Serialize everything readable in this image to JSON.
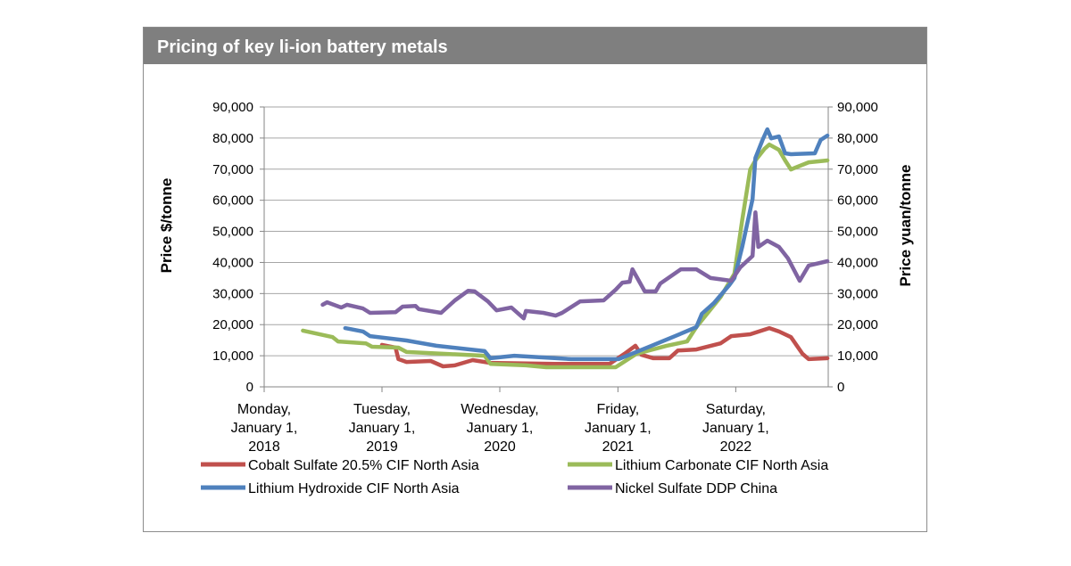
{
  "header": {
    "title": "Pricing of key li-ion battery metals"
  },
  "chart_data": {
    "type": "line",
    "title": "Pricing of key li-ion battery metals",
    "ylabel": "Price $/tonne",
    "ylabel_right": "Price yuan/tonne",
    "ylim": [
      0,
      90000
    ],
    "yticks": [
      "0",
      "10,000",
      "20,000",
      "30,000",
      "40,000",
      "50,000",
      "60,000",
      "70,000",
      "80,000",
      "90,000"
    ],
    "xlim": [
      "2018-01-01",
      "2022-10-20"
    ],
    "xticks": [
      {
        "date": "2018-01-01",
        "label": [
          "Monday,",
          "January 1,",
          "2018"
        ]
      },
      {
        "date": "2019-01-01",
        "label": [
          "Tuesday,",
          "January 1,",
          "2019"
        ]
      },
      {
        "date": "2020-01-01",
        "label": [
          "Wednesday,",
          "January 1,",
          "2020"
        ]
      },
      {
        "date": "2021-01-01",
        "label": [
          "Friday,",
          "January 1,",
          "2021"
        ]
      },
      {
        "date": "2022-01-01",
        "label": [
          "Saturday,",
          "January 1,",
          "2022"
        ]
      }
    ],
    "grid": "horizontal",
    "legend": "bottom",
    "series": [
      {
        "name": "Cobalt Sulfate 20.5% CIF North Asia",
        "color": "#c0504d",
        "points": [
          [
            "2019-01-01",
            13500
          ],
          [
            "2019-02-12",
            12600
          ],
          [
            "2019-02-21",
            8900
          ],
          [
            "2019-03-18",
            8000
          ],
          [
            "2019-06-01",
            8300
          ],
          [
            "2019-07-09",
            6600
          ],
          [
            "2019-08-15",
            6900
          ],
          [
            "2019-10-09",
            8600
          ],
          [
            "2019-12-03",
            7700
          ],
          [
            "2020-06-22",
            7400
          ],
          [
            "2020-12-06",
            7400
          ],
          [
            "2021-01-21",
            10600
          ],
          [
            "2021-02-24",
            13200
          ],
          [
            "2021-03-15",
            10300
          ],
          [
            "2021-04-21",
            9200
          ],
          [
            "2021-06-09",
            9200
          ],
          [
            "2021-07-06",
            11700
          ],
          [
            "2021-09-01",
            12000
          ],
          [
            "2021-11-15",
            14000
          ],
          [
            "2021-12-18",
            16300
          ],
          [
            "2022-02-15",
            16900
          ],
          [
            "2022-04-15",
            18900
          ],
          [
            "2022-05-15",
            17800
          ],
          [
            "2022-06-21",
            16000
          ],
          [
            "2022-07-27",
            10600
          ],
          [
            "2022-08-15",
            8900
          ],
          [
            "2022-10-12",
            9200
          ]
        ]
      },
      {
        "name": "Lithium Carbonate CIF North Asia",
        "color": "#9bbb59",
        "points": [
          [
            "2018-05-01",
            18100
          ],
          [
            "2018-08-01",
            16000
          ],
          [
            "2018-08-18",
            14600
          ],
          [
            "2018-11-12",
            14000
          ],
          [
            "2018-12-01",
            12900
          ],
          [
            "2019-02-21",
            12600
          ],
          [
            "2019-03-18",
            11200
          ],
          [
            "2019-11-15",
            10000
          ],
          [
            "2019-12-03",
            7400
          ],
          [
            "2020-03-22",
            6900
          ],
          [
            "2020-05-24",
            6300
          ],
          [
            "2020-12-25",
            6300
          ],
          [
            "2021-01-03",
            6900
          ],
          [
            "2021-02-27",
            10600
          ],
          [
            "2021-06-01",
            13200
          ],
          [
            "2021-08-03",
            14600
          ],
          [
            "2021-09-01",
            19200
          ],
          [
            "2021-11-15",
            28900
          ],
          [
            "2021-12-28",
            36400
          ],
          [
            "2022-01-21",
            53600
          ],
          [
            "2022-02-15",
            69900
          ],
          [
            "2022-03-03",
            72800
          ],
          [
            "2022-03-31",
            76500
          ],
          [
            "2022-04-15",
            77900
          ],
          [
            "2022-05-15",
            76200
          ],
          [
            "2022-06-03",
            72800
          ],
          [
            "2022-06-21",
            69900
          ],
          [
            "2022-08-15",
            72200
          ],
          [
            "2022-10-12",
            72800
          ]
        ]
      },
      {
        "name": "Lithium Hydroxide CIF North Asia",
        "color": "#4f81bd",
        "points": [
          [
            "2018-09-09",
            18900
          ],
          [
            "2018-11-03",
            17800
          ],
          [
            "2018-11-25",
            16300
          ],
          [
            "2019-03-18",
            14900
          ],
          [
            "2019-06-18",
            13200
          ],
          [
            "2019-11-15",
            11500
          ],
          [
            "2019-12-03",
            9200
          ],
          [
            "2020-02-15",
            10000
          ],
          [
            "2020-08-09",
            8900
          ],
          [
            "2021-01-03",
            8900
          ],
          [
            "2021-04-15",
            13200
          ],
          [
            "2021-06-27",
            16300
          ],
          [
            "2021-09-01",
            19200
          ],
          [
            "2021-09-18",
            23500
          ],
          [
            "2021-10-25",
            26900
          ],
          [
            "2021-12-12",
            32700
          ],
          [
            "2021-12-28",
            35000
          ],
          [
            "2022-01-21",
            45000
          ],
          [
            "2022-02-22",
            60400
          ],
          [
            "2022-03-03",
            73600
          ],
          [
            "2022-03-25",
            79400
          ],
          [
            "2022-04-09",
            82800
          ],
          [
            "2022-04-21",
            79900
          ],
          [
            "2022-05-15",
            80500
          ],
          [
            "2022-06-03",
            75100
          ],
          [
            "2022-06-21",
            74800
          ],
          [
            "2022-09-03",
            75100
          ],
          [
            "2022-09-21",
            79400
          ],
          [
            "2022-10-12",
            80800
          ]
        ]
      },
      {
        "name": "Nickel Sulfate DDP China",
        "color": "#8064a2",
        "points": [
          [
            "2018-07-01",
            26400
          ],
          [
            "2018-07-15",
            27200
          ],
          [
            "2018-08-28",
            25500
          ],
          [
            "2018-09-15",
            26400
          ],
          [
            "2018-11-03",
            25200
          ],
          [
            "2018-11-25",
            23800
          ],
          [
            "2019-02-12",
            24000
          ],
          [
            "2019-03-06",
            25800
          ],
          [
            "2019-04-15",
            26000
          ],
          [
            "2019-04-25",
            25000
          ],
          [
            "2019-07-03",
            23800
          ],
          [
            "2019-08-15",
            27800
          ],
          [
            "2019-09-25",
            30900
          ],
          [
            "2019-10-15",
            30700
          ],
          [
            "2019-11-25",
            27500
          ],
          [
            "2019-12-22",
            24600
          ],
          [
            "2020-02-06",
            25500
          ],
          [
            "2020-03-15",
            22000
          ],
          [
            "2020-03-22",
            24400
          ],
          [
            "2020-05-15",
            23800
          ],
          [
            "2020-06-22",
            22900
          ],
          [
            "2020-07-12",
            23800
          ],
          [
            "2020-09-06",
            27500
          ],
          [
            "2020-11-18",
            27800
          ],
          [
            "2020-12-25",
            31200
          ],
          [
            "2021-01-15",
            33500
          ],
          [
            "2021-02-06",
            33800
          ],
          [
            "2021-02-15",
            37800
          ],
          [
            "2021-03-25",
            30700
          ],
          [
            "2021-04-28",
            30700
          ],
          [
            "2021-05-12",
            33200
          ],
          [
            "2021-07-15",
            37800
          ],
          [
            "2021-09-01",
            37800
          ],
          [
            "2021-10-15",
            35000
          ],
          [
            "2021-12-18",
            34100
          ],
          [
            "2022-01-15",
            38400
          ],
          [
            "2022-02-22",
            42100
          ],
          [
            "2022-03-03",
            56100
          ],
          [
            "2022-03-12",
            45000
          ],
          [
            "2022-04-09",
            47000
          ],
          [
            "2022-05-15",
            45000
          ],
          [
            "2022-06-12",
            41300
          ],
          [
            "2022-07-18",
            34100
          ],
          [
            "2022-08-15",
            39000
          ],
          [
            "2022-10-12",
            40400
          ]
        ]
      }
    ]
  }
}
